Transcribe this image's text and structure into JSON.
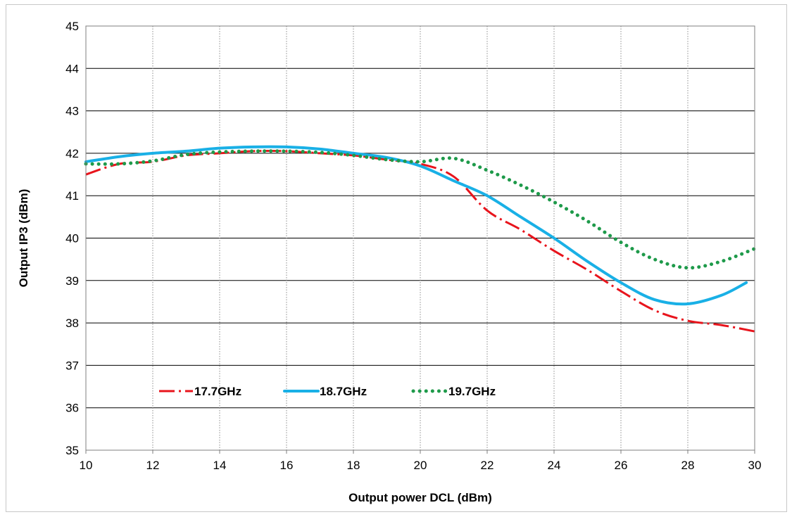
{
  "chart_data": {
    "type": "line",
    "xlabel": "Output power DCL (dBm)",
    "ylabel": "Output  IP3 (dBm)",
    "xlim": [
      10,
      30
    ],
    "ylim": [
      35,
      45
    ],
    "x_ticks": [
      "10",
      "12",
      "14",
      "16",
      "18",
      "20",
      "22",
      "24",
      "26",
      "28",
      "30"
    ],
    "y_ticks": [
      "35",
      "36",
      "37",
      "38",
      "39",
      "40",
      "41",
      "42",
      "43",
      "44",
      "45"
    ],
    "grid": true,
    "legend_position": "inside-bottom",
    "series": [
      {
        "name": "17.7GHz",
        "color": "#e8141c",
        "style": "dash-dot",
        "x": [
          10,
          11,
          12,
          13,
          14,
          15,
          16,
          17,
          18,
          19,
          20,
          21,
          22,
          23,
          24,
          25,
          26,
          27,
          28,
          29,
          30
        ],
        "y": [
          41.5,
          41.75,
          41.8,
          41.95,
          42.0,
          42.05,
          42.05,
          42.0,
          41.95,
          41.85,
          41.75,
          41.45,
          40.65,
          40.2,
          39.7,
          39.25,
          38.75,
          38.3,
          38.05,
          37.95,
          37.8
        ]
      },
      {
        "name": "18.7GHz",
        "color": "#19b0e6",
        "style": "solid",
        "x": [
          10,
          11,
          12,
          13,
          14,
          15,
          16,
          17,
          18,
          19,
          20,
          21,
          22,
          23,
          24,
          25,
          26,
          27,
          28,
          29,
          29.75
        ],
        "y": [
          41.8,
          41.92,
          42.0,
          42.05,
          42.12,
          42.15,
          42.15,
          42.1,
          42.0,
          41.9,
          41.7,
          41.35,
          41.0,
          40.5,
          40.0,
          39.45,
          38.95,
          38.55,
          38.45,
          38.65,
          38.95
        ]
      },
      {
        "name": "19.7GHz",
        "color": "#1e9a4a",
        "style": "dotted",
        "x": [
          10,
          11,
          12,
          13,
          14,
          15,
          16,
          17,
          18,
          19,
          20,
          21,
          22,
          23,
          24,
          25,
          26,
          27,
          28,
          29,
          30
        ],
        "y": [
          41.75,
          41.75,
          41.82,
          41.97,
          42.03,
          42.05,
          42.05,
          42.02,
          41.95,
          41.85,
          41.8,
          41.88,
          41.6,
          41.25,
          40.85,
          40.4,
          39.9,
          39.5,
          39.3,
          39.45,
          39.75
        ]
      }
    ]
  }
}
